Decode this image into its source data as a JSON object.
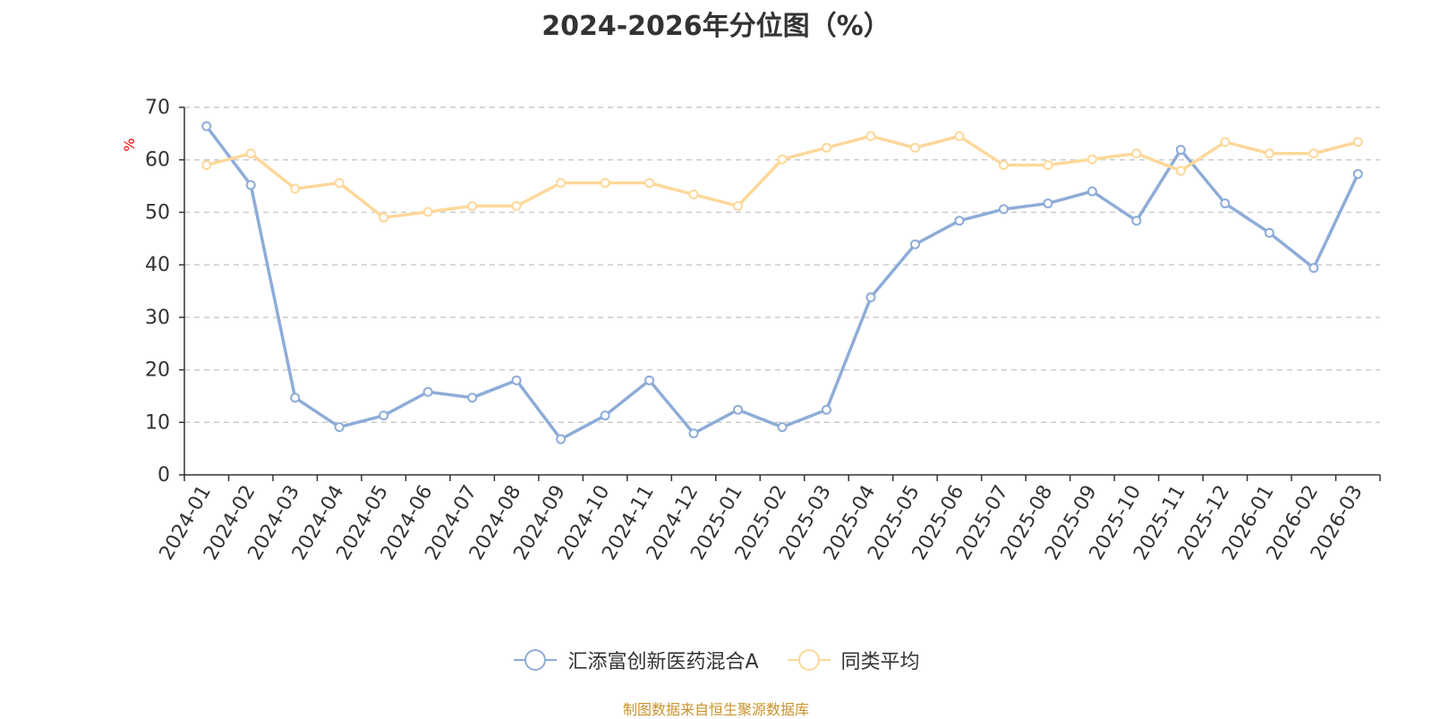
{
  "colors": {
    "series_a": "#8eacd8",
    "series_b": "#fdd89a",
    "axis": "#333333",
    "grid": "#cccccc",
    "unit": "#ff0000",
    "source": "#c8942a"
  },
  "source_text": "制图数据来自恒生聚源数据库",
  "chart_data": {
    "type": "line",
    "title": "2024-2026年分位图（%）",
    "ylabel": "%",
    "xlabel": "",
    "ylim": [
      0,
      70
    ],
    "yticks": [
      0,
      10,
      20,
      30,
      40,
      50,
      60,
      70
    ],
    "grid": true,
    "legend_position": "bottom",
    "categories": [
      "2024-01",
      "2024-02",
      "2024-03",
      "2024-04",
      "2024-05",
      "2024-06",
      "2024-07",
      "2024-08",
      "2024-09",
      "2024-10",
      "2024-11",
      "2024-12",
      "2025-01",
      "2025-02",
      "2025-03",
      "2025-04",
      "2025-05",
      "2025-06",
      "2025-07",
      "2025-08",
      "2025-09",
      "2025-10",
      "2025-11",
      "2025-12",
      "2026-01",
      "2026-02",
      "2026-03"
    ],
    "series": [
      {
        "name": "汇添富创新医药混合A",
        "values": [
          66.4,
          55.2,
          14.7,
          9.1,
          11.3,
          15.8,
          14.7,
          18.0,
          6.8,
          11.3,
          18.0,
          7.9,
          12.4,
          9.1,
          12.4,
          33.8,
          43.9,
          48.4,
          50.6,
          51.7,
          54.0,
          48.4,
          61.9,
          51.7,
          46.1,
          39.4,
          57.3
        ]
      },
      {
        "name": "同类平均",
        "values": [
          59.0,
          61.2,
          54.5,
          55.6,
          49.0,
          50.1,
          51.2,
          51.2,
          55.6,
          55.6,
          55.6,
          53.4,
          51.2,
          60.1,
          62.3,
          64.5,
          62.3,
          64.5,
          59.0,
          59.0,
          60.1,
          61.2,
          57.9,
          63.4,
          61.2,
          61.2,
          63.4
        ]
      }
    ]
  }
}
